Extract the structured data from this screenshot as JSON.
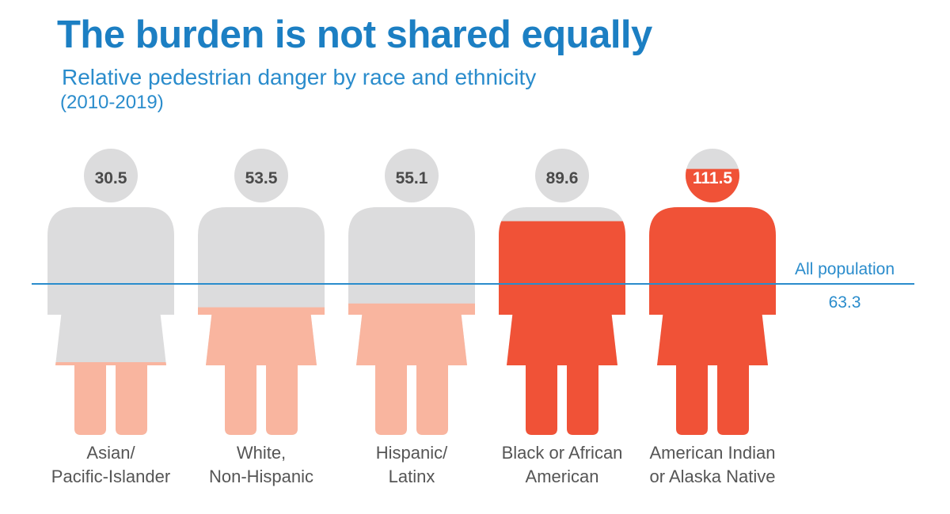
{
  "header": {
    "title": "The burden is not shared equally",
    "subtitle": "Relative pedestrian danger by race and ethnicity",
    "period": "(2010-2019)"
  },
  "colors": {
    "title": "#1c7fc3",
    "gray": "#dcdcdd",
    "gray_head": "#d4d4d5",
    "light_fill": "#f9b59f",
    "strong_fill": "#f05237",
    "reference_line": "#2a8ccc",
    "value_text": "#4a4a4a",
    "label_text": "#555555"
  },
  "chart_data": {
    "type": "bar",
    "title": "The burden is not shared equally",
    "subtitle": "Relative pedestrian danger by race and ethnicity",
    "period": "(2010-2019)",
    "categories": [
      "Asian/ Pacific-Islander",
      "White, Non-Hispanic",
      "Hispanic/ Latinx",
      "Black or African American",
      "American Indian or Alaska Native"
    ],
    "category_lines": [
      [
        "Asian/",
        "Pacific-Islander"
      ],
      [
        "White,",
        "Non-Hispanic"
      ],
      [
        "Hispanic/",
        "Latinx"
      ],
      [
        "Black or African",
        "American"
      ],
      [
        "American Indian",
        "or Alaska Native"
      ]
    ],
    "values": [
      30.5,
      53.5,
      55.1,
      89.6,
      111.5
    ],
    "value_labels": [
      "30.5",
      "53.5",
      "55.1",
      "89.6",
      "111.5"
    ],
    "scale_max": 120,
    "reference": {
      "label": "All population",
      "value": 63.3,
      "value_label": "63.3"
    }
  }
}
